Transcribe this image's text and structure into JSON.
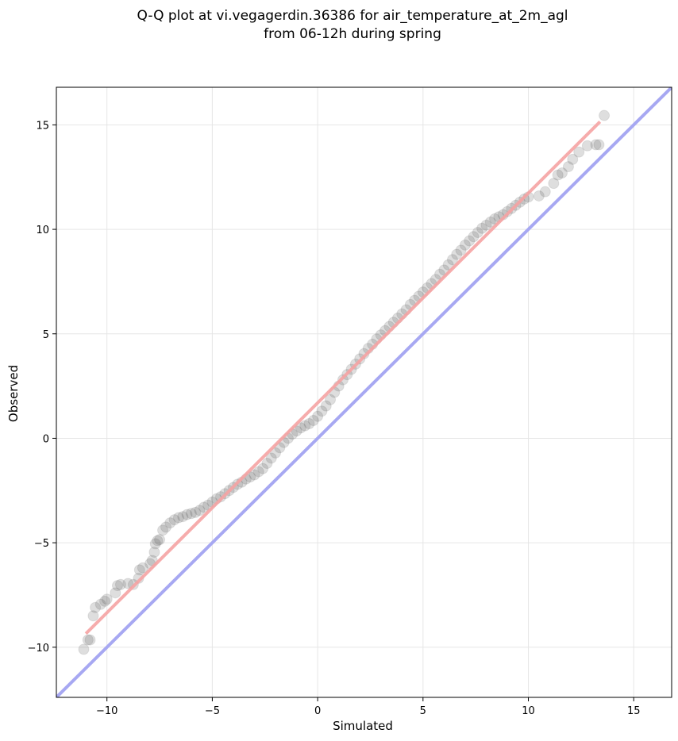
{
  "chart_data": {
    "type": "scatter",
    "title_line1": "Q-Q plot at vi.vegagerdin.36386 for air_temperature_at_2m_agl",
    "title_line2": "from 06-12h during spring",
    "xlabel": "Simulated",
    "ylabel": "Observed",
    "xlim": [
      -12.4,
      16.8
    ],
    "ylim": [
      -12.4,
      16.8
    ],
    "xticks": [
      -10,
      -5,
      0,
      5,
      10,
      15
    ],
    "yticks": [
      -10,
      -5,
      0,
      5,
      10,
      15
    ],
    "xtick_labels": [
      "−10",
      "−5",
      "0",
      "5",
      "10",
      "15"
    ],
    "ytick_labels": [
      "−10",
      "−5",
      "0",
      "5",
      "10",
      "15"
    ],
    "grid": true,
    "reference_line": {
      "color": "#a7a8f2",
      "description_points": [
        [
          -12.4,
          -12.4
        ],
        [
          16.8,
          16.8
        ]
      ]
    },
    "fit_line": {
      "color": "#f5a3a3",
      "points": [
        [
          -11.0,
          -9.35
        ],
        [
          13.4,
          15.15
        ]
      ]
    },
    "point_color": "#4a4a4a",
    "series": [
      {
        "points": [
          [
            -11.1,
            -10.1
          ],
          [
            -10.9,
            -9.65
          ],
          [
            -10.8,
            -9.65
          ],
          [
            -10.65,
            -8.5
          ],
          [
            -10.55,
            -8.1
          ],
          [
            -10.3,
            -7.95
          ],
          [
            -10.1,
            -7.8
          ],
          [
            -10.0,
            -7.7
          ],
          [
            -9.6,
            -7.4
          ],
          [
            -9.5,
            -7.05
          ],
          [
            -9.35,
            -7.0
          ],
          [
            -9.0,
            -6.95
          ],
          [
            -8.75,
            -7.0
          ],
          [
            -8.5,
            -6.7
          ],
          [
            -8.45,
            -6.3
          ],
          [
            -8.3,
            -6.2
          ],
          [
            -7.95,
            -6.0
          ],
          [
            -7.85,
            -5.85
          ],
          [
            -7.75,
            -5.45
          ],
          [
            -7.7,
            -5.05
          ],
          [
            -7.6,
            -4.9
          ],
          [
            -7.5,
            -4.85
          ],
          [
            -7.35,
            -4.4
          ],
          [
            -7.2,
            -4.25
          ],
          [
            -7.0,
            -4.05
          ],
          [
            -6.8,
            -3.9
          ],
          [
            -6.6,
            -3.8
          ],
          [
            -6.4,
            -3.75
          ],
          [
            -6.2,
            -3.65
          ],
          [
            -6.0,
            -3.6
          ],
          [
            -5.8,
            -3.55
          ],
          [
            -5.6,
            -3.45
          ],
          [
            -5.4,
            -3.3
          ],
          [
            -5.2,
            -3.2
          ],
          [
            -5.0,
            -3.05
          ],
          [
            -4.8,
            -2.9
          ],
          [
            -4.6,
            -2.8
          ],
          [
            -4.4,
            -2.65
          ],
          [
            -4.2,
            -2.5
          ],
          [
            -4.0,
            -2.35
          ],
          [
            -3.8,
            -2.2
          ],
          [
            -3.6,
            -2.1
          ],
          [
            -3.4,
            -1.95
          ],
          [
            -3.2,
            -1.85
          ],
          [
            -3.0,
            -1.75
          ],
          [
            -2.8,
            -1.6
          ],
          [
            -2.6,
            -1.45
          ],
          [
            -2.4,
            -1.2
          ],
          [
            -2.2,
            -0.95
          ],
          [
            -2.0,
            -0.7
          ],
          [
            -1.8,
            -0.45
          ],
          [
            -1.6,
            -0.2
          ],
          [
            -1.4,
            0.0
          ],
          [
            -1.2,
            0.2
          ],
          [
            -1.0,
            0.35
          ],
          [
            -0.8,
            0.5
          ],
          [
            -0.6,
            0.6
          ],
          [
            -0.4,
            0.7
          ],
          [
            -0.2,
            0.85
          ],
          [
            0.0,
            1.05
          ],
          [
            0.2,
            1.3
          ],
          [
            0.4,
            1.55
          ],
          [
            0.6,
            1.85
          ],
          [
            0.8,
            2.2
          ],
          [
            1.0,
            2.5
          ],
          [
            1.2,
            2.8
          ],
          [
            1.4,
            3.05
          ],
          [
            1.6,
            3.3
          ],
          [
            1.8,
            3.55
          ],
          [
            2.0,
            3.8
          ],
          [
            2.2,
            4.05
          ],
          [
            2.4,
            4.3
          ],
          [
            2.6,
            4.5
          ],
          [
            2.8,
            4.75
          ],
          [
            3.0,
            4.95
          ],
          [
            3.2,
            5.15
          ],
          [
            3.4,
            5.35
          ],
          [
            3.6,
            5.55
          ],
          [
            3.8,
            5.75
          ],
          [
            4.0,
            5.95
          ],
          [
            4.2,
            6.15
          ],
          [
            4.4,
            6.4
          ],
          [
            4.6,
            6.6
          ],
          [
            4.8,
            6.8
          ],
          [
            5.0,
            7.0
          ],
          [
            5.2,
            7.2
          ],
          [
            5.4,
            7.4
          ],
          [
            5.6,
            7.6
          ],
          [
            5.8,
            7.85
          ],
          [
            6.0,
            8.05
          ],
          [
            6.2,
            8.3
          ],
          [
            6.4,
            8.55
          ],
          [
            6.6,
            8.8
          ],
          [
            6.8,
            9.0
          ],
          [
            7.0,
            9.25
          ],
          [
            7.2,
            9.45
          ],
          [
            7.4,
            9.65
          ],
          [
            7.6,
            9.85
          ],
          [
            7.8,
            10.05
          ],
          [
            8.0,
            10.2
          ],
          [
            8.2,
            10.35
          ],
          [
            8.4,
            10.5
          ],
          [
            8.6,
            10.6
          ],
          [
            8.8,
            10.7
          ],
          [
            9.0,
            10.85
          ],
          [
            9.2,
            11.0
          ],
          [
            9.4,
            11.15
          ],
          [
            9.6,
            11.3
          ],
          [
            9.8,
            11.45
          ],
          [
            10.0,
            11.55
          ],
          [
            10.5,
            11.6
          ],
          [
            10.8,
            11.8
          ],
          [
            11.2,
            12.2
          ],
          [
            11.4,
            12.6
          ],
          [
            11.6,
            12.7
          ],
          [
            11.9,
            13.0
          ],
          [
            12.1,
            13.35
          ],
          [
            12.4,
            13.7
          ],
          [
            12.8,
            14.0
          ],
          [
            13.2,
            14.05
          ],
          [
            13.35,
            14.05
          ],
          [
            13.6,
            15.45
          ]
        ]
      }
    ]
  }
}
